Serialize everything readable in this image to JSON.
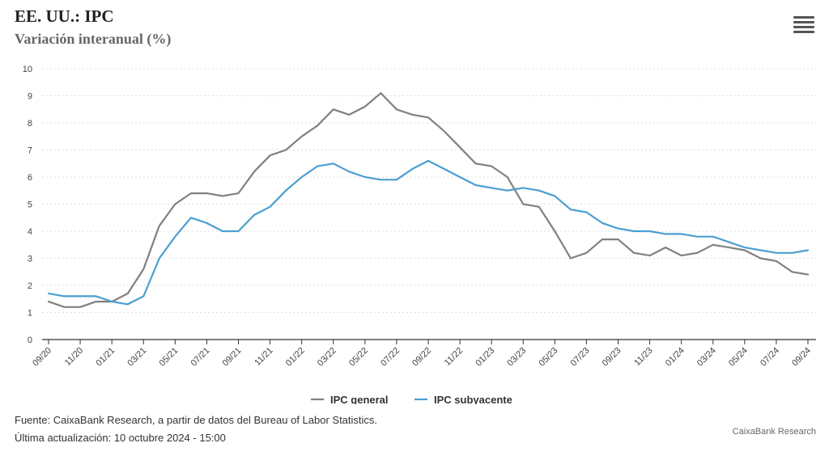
{
  "chart_data": {
    "type": "line",
    "title": "EE. UU.: IPC",
    "subtitle": "Variación interanual (%)",
    "ylim": [
      0,
      10
    ],
    "yticks": [
      0,
      1,
      2,
      3,
      4,
      5,
      6,
      7,
      8,
      9,
      10
    ],
    "x_labels": [
      "09/20",
      "11/20",
      "01/21",
      "03/21",
      "05/21",
      "07/21",
      "09/21",
      "11/21",
      "01/22",
      "03/22",
      "05/22",
      "07/22",
      "09/22",
      "11/22",
      "01/23",
      "03/23",
      "05/23",
      "07/23",
      "09/23",
      "11/23",
      "01/24",
      "03/24",
      "05/24",
      "07/24",
      "09/24"
    ],
    "series": [
      {
        "name": "IPC general",
        "color": "#808080",
        "values": [
          1.4,
          1.2,
          1.2,
          1.4,
          1.4,
          1.7,
          2.6,
          4.2,
          5.0,
          5.4,
          5.4,
          5.3,
          5.4,
          6.2,
          6.8,
          7.0,
          7.5,
          7.9,
          8.5,
          8.3,
          8.6,
          9.1,
          8.5,
          8.3,
          8.2,
          7.7,
          7.1,
          6.5,
          6.4,
          6.0,
          5.0,
          4.9,
          4.0,
          3.0,
          3.2,
          3.7,
          3.7,
          3.2,
          3.1,
          3.4,
          3.1,
          3.2,
          3.5,
          3.4,
          3.3,
          3.0,
          2.9,
          2.5,
          2.4
        ]
      },
      {
        "name": "IPC subyacente",
        "color": "#4a9fd1",
        "values": [
          1.7,
          1.6,
          1.6,
          1.6,
          1.4,
          1.3,
          1.6,
          3.0,
          3.8,
          4.5,
          4.3,
          4.0,
          4.0,
          4.6,
          4.9,
          5.5,
          6.0,
          6.4,
          6.5,
          6.2,
          6.0,
          5.9,
          5.9,
          6.3,
          6.6,
          6.3,
          6.0,
          5.7,
          5.6,
          5.5,
          5.6,
          5.5,
          5.3,
          4.8,
          4.7,
          4.3,
          4.1,
          4.0,
          4.0,
          3.9,
          3.9,
          3.8,
          3.8,
          3.6,
          3.4,
          3.3,
          3.2,
          3.2,
          3.3
        ]
      }
    ]
  },
  "menu_icon": "hamburger-menu-icon",
  "footer": {
    "source": "Fuente: CaixaBank Research, a partir de datos del Bureau of Labor Statistics.",
    "updated": "Última actualización: 10 octubre 2024 - 15:00",
    "credit": "CaixaBank Research"
  }
}
